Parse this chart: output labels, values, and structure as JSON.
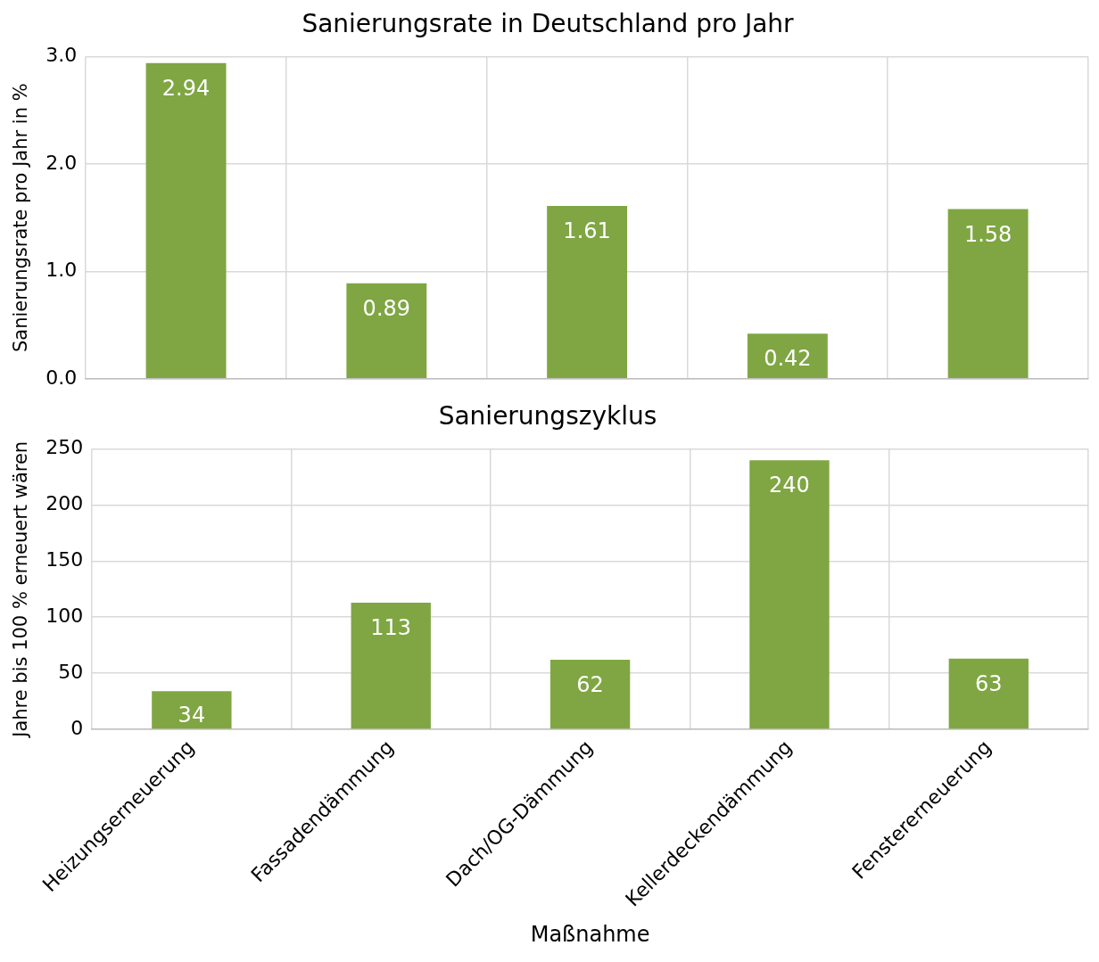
{
  "chart_data": [
    {
      "type": "bar",
      "title": "Sanierungsrate in Deutschland pro Jahr",
      "ylabel": "Sanierungsrate pro Jahr in %",
      "categories": [
        null,
        null,
        null,
        null,
        null
      ],
      "values": [
        2.94,
        0.89,
        1.61,
        0.42,
        1.58
      ],
      "color": "#7fa642",
      "ylim": [
        0,
        3
      ],
      "yticks": [
        {
          "value": 0,
          "label": "0.0"
        },
        {
          "value": 1,
          "label": "1.0"
        },
        {
          "value": 2,
          "label": "2.0"
        },
        {
          "value": 3,
          "label": "3.0"
        }
      ],
      "grid": true,
      "data_labels": true,
      "tick_labels": "y"
    },
    {
      "type": "bar",
      "title": "Sanierungszyklus",
      "xlabel": "Maßnahme",
      "ylabel": "Jahre bis 100 % erneuert wären",
      "categories": [
        "Heizungserneuerung",
        "Fassadendämmung",
        "Dach/OG-Dämmung",
        "Kellerdeckendämmung",
        "Fenstererneuerung"
      ],
      "values": [
        34,
        113,
        62,
        240,
        63
      ],
      "color": "#7fa642",
      "ylim": [
        0,
        250
      ],
      "yticks": [
        0,
        50,
        100,
        150,
        200,
        250
      ],
      "grid": true,
      "data_labels": true
    }
  ]
}
